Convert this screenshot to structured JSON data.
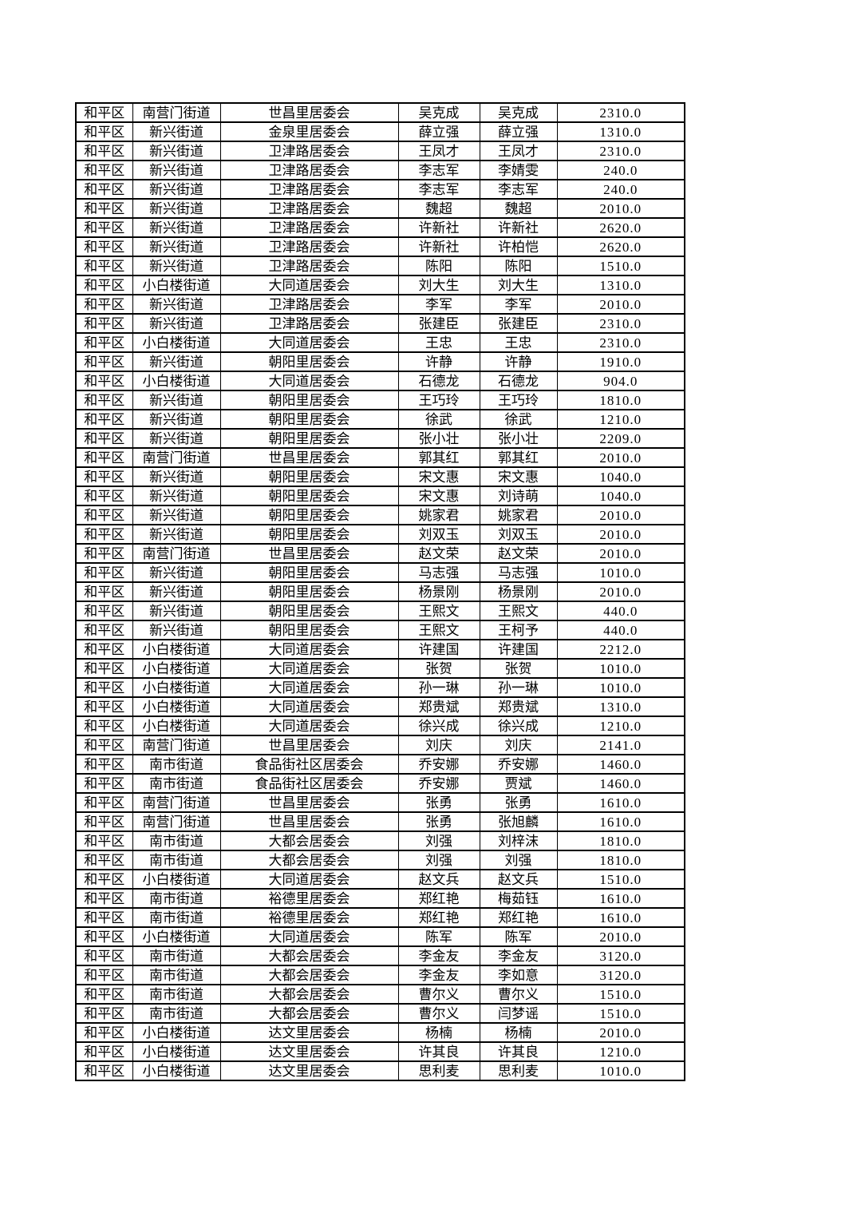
{
  "page": {
    "background_color": "#ffffff",
    "text_color": "#000000",
    "border_color": "#000000"
  },
  "table": {
    "column_keys": [
      "district",
      "street",
      "committee",
      "name-1",
      "name-2",
      "amount"
    ],
    "rows": [
      [
        "和平区",
        "南营门街道",
        "世昌里居委会",
        "吴克成",
        "吴克成",
        "2310.0"
      ],
      [
        "和平区",
        "新兴街道",
        "金泉里居委会",
        "薛立强",
        "薛立强",
        "1310.0"
      ],
      [
        "和平区",
        "新兴街道",
        "卫津路居委会",
        "王凤才",
        "王凤才",
        "2310.0"
      ],
      [
        "和平区",
        "新兴街道",
        "卫津路居委会",
        "李志军",
        "李婧雯",
        "240.0"
      ],
      [
        "和平区",
        "新兴街道",
        "卫津路居委会",
        "李志军",
        "李志军",
        "240.0"
      ],
      [
        "和平区",
        "新兴街道",
        "卫津路居委会",
        "魏超",
        "魏超",
        "2010.0"
      ],
      [
        "和平区",
        "新兴街道",
        "卫津路居委会",
        "许新社",
        "许新社",
        "2620.0"
      ],
      [
        "和平区",
        "新兴街道",
        "卫津路居委会",
        "许新社",
        "许柏恺",
        "2620.0"
      ],
      [
        "和平区",
        "新兴街道",
        "卫津路居委会",
        "陈阳",
        "陈阳",
        "1510.0"
      ],
      [
        "和平区",
        "小白楼街道",
        "大同道居委会",
        "刘大生",
        "刘大生",
        "1310.0"
      ],
      [
        "和平区",
        "新兴街道",
        "卫津路居委会",
        "李军",
        "李军",
        "2010.0"
      ],
      [
        "和平区",
        "新兴街道",
        "卫津路居委会",
        "张建臣",
        "张建臣",
        "2310.0"
      ],
      [
        "和平区",
        "小白楼街道",
        "大同道居委会",
        "王忠",
        "王忠",
        "2310.0"
      ],
      [
        "和平区",
        "新兴街道",
        "朝阳里居委会",
        "许静",
        "许静",
        "1910.0"
      ],
      [
        "和平区",
        "小白楼街道",
        "大同道居委会",
        "石德龙",
        "石德龙",
        "904.0"
      ],
      [
        "和平区",
        "新兴街道",
        "朝阳里居委会",
        "王巧玲",
        "王巧玲",
        "1810.0"
      ],
      [
        "和平区",
        "新兴街道",
        "朝阳里居委会",
        "徐武",
        "徐武",
        "1210.0"
      ],
      [
        "和平区",
        "新兴街道",
        "朝阳里居委会",
        "张小壮",
        "张小壮",
        "2209.0"
      ],
      [
        "和平区",
        "南营门街道",
        "世昌里居委会",
        "郭其红",
        "郭其红",
        "2010.0"
      ],
      [
        "和平区",
        "新兴街道",
        "朝阳里居委会",
        "宋文惠",
        "宋文惠",
        "1040.0"
      ],
      [
        "和平区",
        "新兴街道",
        "朝阳里居委会",
        "宋文惠",
        "刘诗萌",
        "1040.0"
      ],
      [
        "和平区",
        "新兴街道",
        "朝阳里居委会",
        "姚家君",
        "姚家君",
        "2010.0"
      ],
      [
        "和平区",
        "新兴街道",
        "朝阳里居委会",
        "刘双玉",
        "刘双玉",
        "2010.0"
      ],
      [
        "和平区",
        "南营门街道",
        "世昌里居委会",
        "赵文荣",
        "赵文荣",
        "2010.0"
      ],
      [
        "和平区",
        "新兴街道",
        "朝阳里居委会",
        "马志强",
        "马志强",
        "1010.0"
      ],
      [
        "和平区",
        "新兴街道",
        "朝阳里居委会",
        "杨景刚",
        "杨景刚",
        "2010.0"
      ],
      [
        "和平区",
        "新兴街道",
        "朝阳里居委会",
        "王熙文",
        "王熙文",
        "440.0"
      ],
      [
        "和平区",
        "新兴街道",
        "朝阳里居委会",
        "王熙文",
        "王柯予",
        "440.0"
      ],
      [
        "和平区",
        "小白楼街道",
        "大同道居委会",
        "许建国",
        "许建国",
        "2212.0"
      ],
      [
        "和平区",
        "小白楼街道",
        "大同道居委会",
        "张贺",
        "张贺",
        "1010.0"
      ],
      [
        "和平区",
        "小白楼街道",
        "大同道居委会",
        "孙一琳",
        "孙一琳",
        "1010.0"
      ],
      [
        "和平区",
        "小白楼街道",
        "大同道居委会",
        "郑贵斌",
        "郑贵斌",
        "1310.0"
      ],
      [
        "和平区",
        "小白楼街道",
        "大同道居委会",
        "徐兴成",
        "徐兴成",
        "1210.0"
      ],
      [
        "和平区",
        "南营门街道",
        "世昌里居委会",
        "刘庆",
        "刘庆",
        "2141.0"
      ],
      [
        "和平区",
        "南市街道",
        "食品街社区居委会",
        "乔安娜",
        "乔安娜",
        "1460.0"
      ],
      [
        "和平区",
        "南市街道",
        "食品街社区居委会",
        "乔安娜",
        "贾斌",
        "1460.0"
      ],
      [
        "和平区",
        "南营门街道",
        "世昌里居委会",
        "张勇",
        "张勇",
        "1610.0"
      ],
      [
        "和平区",
        "南营门街道",
        "世昌里居委会",
        "张勇",
        "张旭麟",
        "1610.0"
      ],
      [
        "和平区",
        "南市街道",
        "大都会居委会",
        "刘强",
        "刘梓沫",
        "1810.0"
      ],
      [
        "和平区",
        "南市街道",
        "大都会居委会",
        "刘强",
        "刘强",
        "1810.0"
      ],
      [
        "和平区",
        "小白楼街道",
        "大同道居委会",
        "赵文兵",
        "赵文兵",
        "1510.0"
      ],
      [
        "和平区",
        "南市街道",
        "裕德里居委会",
        "郑红艳",
        "梅茹钰",
        "1610.0"
      ],
      [
        "和平区",
        "南市街道",
        "裕德里居委会",
        "郑红艳",
        "郑红艳",
        "1610.0"
      ],
      [
        "和平区",
        "小白楼街道",
        "大同道居委会",
        "陈军",
        "陈军",
        "2010.0"
      ],
      [
        "和平区",
        "南市街道",
        "大都会居委会",
        "李金友",
        "李金友",
        "3120.0"
      ],
      [
        "和平区",
        "南市街道",
        "大都会居委会",
        "李金友",
        "李如意",
        "3120.0"
      ],
      [
        "和平区",
        "南市街道",
        "大都会居委会",
        "曹尔义",
        "曹尔义",
        "1510.0"
      ],
      [
        "和平区",
        "南市街道",
        "大都会居委会",
        "曹尔义",
        "闫梦谣",
        "1510.0"
      ],
      [
        "和平区",
        "小白楼街道",
        "达文里居委会",
        "杨楠",
        "杨楠",
        "2010.0"
      ],
      [
        "和平区",
        "小白楼街道",
        "达文里居委会",
        "许其良",
        "许其良",
        "1210.0"
      ],
      [
        "和平区",
        "小白楼街道",
        "达文里居委会",
        "思利麦",
        "思利麦",
        "1010.0"
      ]
    ]
  }
}
